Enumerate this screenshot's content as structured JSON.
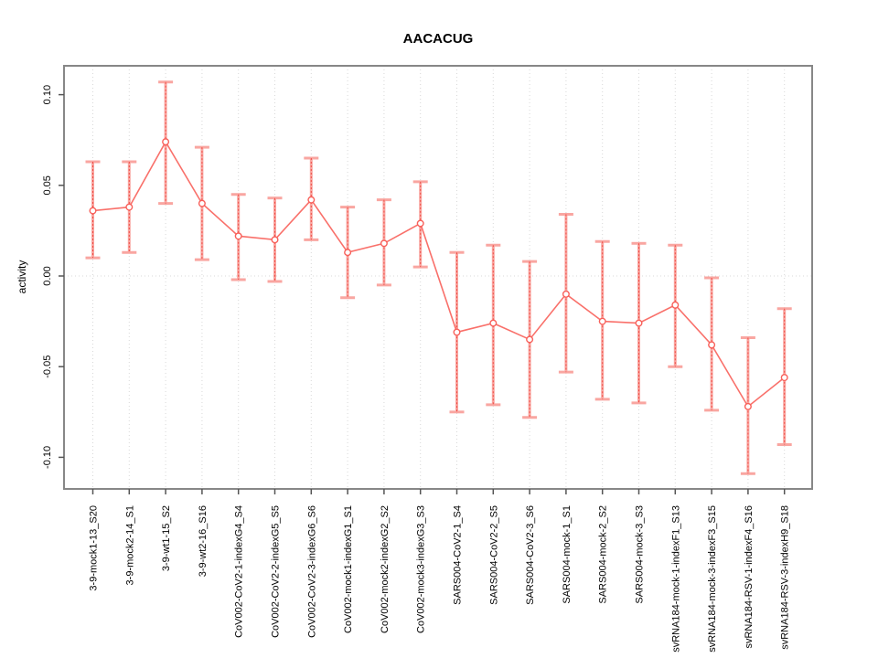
{
  "chart_data": {
    "type": "line",
    "title": "AACACUG",
    "xlabel": "",
    "ylabel": "activity",
    "ylim": [
      -0.117,
      0.116
    ],
    "y_tick_values": [
      0.1,
      0.05,
      0.0,
      -0.05,
      -0.1
    ],
    "y_tick_labels": [
      "0.10",
      "0.05",
      "0.00",
      "-0.05",
      "-0.10"
    ],
    "grid": {
      "vertical_per_category": true,
      "horizontal_zero_line": true,
      "style": "dotted"
    },
    "legend_position": "none",
    "categories": [
      "3-9-mock1-13_S20",
      "3-9-mock2-14_S1",
      "3-9-wt1-15_S2",
      "3-9-wt2-16_S16",
      "CoV002-CoV2-1-indexG4_S4",
      "CoV002-CoV2-2-indexG5_S5",
      "CoV002-CoV2-3-indexG6_S6",
      "CoV002-mock1-indexG1_S1",
      "CoV002-mock2-indexG2_S2",
      "CoV002-mock3-indexG3_S3",
      "SARS004-CoV2-1_S4",
      "SARS004-CoV2-2_S5",
      "SARS004-CoV2-3_S6",
      "SARS004-mock-1_S1",
      "SARS004-mock-2_S2",
      "SARS004-mock-3_S3",
      "svRNA184-mock-1-indexF1_S13",
      "svRNA184-mock-3-indexF3_S15",
      "svRNA184-RSV-1-indexF4_S16",
      "svRNA184-RSV-3-indexH9_S18"
    ],
    "series": [
      {
        "name": "activity",
        "values": [
          0.036,
          0.038,
          0.074,
          0.04,
          0.022,
          0.02,
          0.042,
          0.013,
          0.018,
          0.029,
          -0.031,
          -0.026,
          -0.035,
          -0.01,
          -0.025,
          -0.026,
          -0.016,
          -0.038,
          -0.072,
          -0.056
        ],
        "err_low": [
          0.01,
          0.013,
          0.04,
          0.009,
          -0.002,
          -0.003,
          0.02,
          -0.012,
          -0.005,
          0.005,
          -0.075,
          -0.071,
          -0.078,
          -0.053,
          -0.068,
          -0.07,
          -0.05,
          -0.074,
          -0.109,
          -0.093
        ],
        "err_high": [
          0.063,
          0.063,
          0.107,
          0.071,
          0.045,
          0.043,
          0.065,
          0.038,
          0.042,
          0.052,
          0.013,
          0.017,
          0.008,
          0.034,
          0.019,
          0.018,
          0.017,
          -0.001,
          -0.034,
          -0.018
        ]
      }
    ],
    "colors": {
      "series_line": "#f8605a",
      "point_stroke": "#f8605a",
      "error_bar": "#f9a6a1",
      "error_bar_dash": "#ef423b",
      "grid": "#d8d8d8",
      "frame": "#878787",
      "tick": "#555555",
      "text": "#000000"
    }
  }
}
